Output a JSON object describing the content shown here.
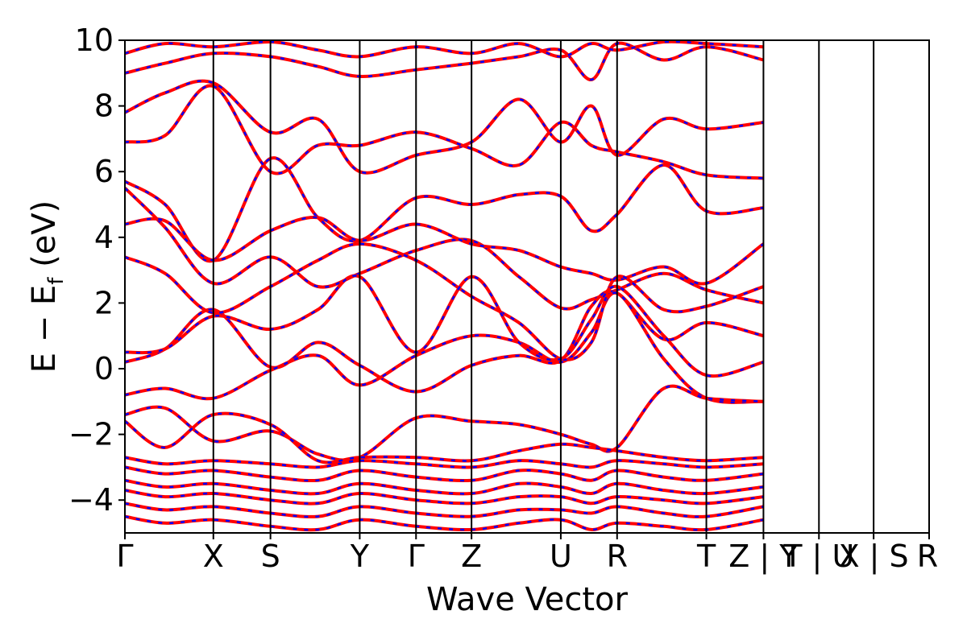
{
  "chart_data": {
    "type": "line",
    "title": "",
    "xlabel": "Wave Vector",
    "ylabel": "E − E_f (eV)",
    "ylabel_parts": {
      "main": "E − E",
      "sub": "f",
      "unit": " (eV)"
    },
    "ylim": [
      -5,
      10
    ],
    "yticks": [
      -4,
      -2,
      0,
      2,
      4,
      6,
      8,
      10
    ],
    "ytick_labels": [
      "−4",
      "−2",
      "0",
      "2",
      "4",
      "6",
      "8",
      "10"
    ],
    "grid": false,
    "legend": "none",
    "colors": {
      "band_solid": "#ff0000",
      "band_dashed": "#0000ff",
      "divider": "#000000"
    },
    "kpath": [
      {
        "label": "Γ",
        "x": 0.0
      },
      {
        "label": "X",
        "x": 0.11
      },
      {
        "label": "S",
        "x": 0.181
      },
      {
        "label": "Y",
        "x": 0.292
      },
      {
        "label": "Γ",
        "x": 0.362
      },
      {
        "label": "Z",
        "x": 0.431
      },
      {
        "label": "U",
        "x": 0.542
      },
      {
        "label": "R",
        "x": 0.612
      },
      {
        "label": "T",
        "x": 0.723
      },
      {
        "label": "Z | Y",
        "x": 0.794
      },
      {
        "label": "T | U",
        "x": 0.863
      },
      {
        "label": "X | S",
        "x": 0.931
      },
      {
        "label": "R",
        "x": 1.0
      }
    ],
    "series": [
      {
        "values": [
          [
            0,
            5.7
          ],
          [
            0.05,
            5.0
          ],
          [
            0.11,
            3.3
          ],
          [
            0.181,
            6.4
          ],
          [
            0.24,
            4.6
          ],
          [
            0.292,
            3.9
          ],
          [
            0.362,
            5.2
          ],
          [
            0.431,
            5.0
          ],
          [
            0.49,
            5.3
          ],
          [
            0.542,
            5.25
          ],
          [
            0.58,
            4.2
          ],
          [
            0.612,
            4.7
          ],
          [
            0.67,
            6.2
          ],
          [
            0.723,
            4.8
          ],
          [
            0.794,
            4.9
          ]
        ]
      },
      {
        "values": [
          [
            0,
            5.5
          ],
          [
            0.05,
            4.3
          ],
          [
            0.11,
            2.6
          ],
          [
            0.181,
            3.4
          ],
          [
            0.24,
            2.5
          ],
          [
            0.292,
            2.9
          ],
          [
            0.362,
            3.6
          ],
          [
            0.431,
            3.9
          ],
          [
            0.49,
            2.8
          ],
          [
            0.542,
            1.85
          ],
          [
            0.58,
            2.1
          ],
          [
            0.612,
            2.4
          ],
          [
            0.67,
            2.9
          ],
          [
            0.723,
            2.4
          ],
          [
            0.794,
            2.0
          ]
        ]
      },
      {
        "values": [
          [
            0,
            0.2
          ],
          [
            0.05,
            0.6
          ],
          [
            0.11,
            1.8
          ],
          [
            0.181,
            0.05
          ],
          [
            0.24,
            0.8
          ],
          [
            0.292,
            0.1
          ],
          [
            0.362,
            -0.7
          ],
          [
            0.431,
            0.1
          ],
          [
            0.49,
            0.4
          ],
          [
            0.542,
            0.25
          ],
          [
            0.58,
            1.9
          ],
          [
            0.612,
            2.3
          ],
          [
            0.67,
            0.9
          ],
          [
            0.723,
            1.4
          ],
          [
            0.794,
            1.0
          ]
        ]
      },
      {
        "values": [
          [
            0,
            -0.8
          ],
          [
            0.05,
            -0.6
          ],
          [
            0.11,
            -0.9
          ],
          [
            0.181,
            -0.05
          ],
          [
            0.24,
            0.4
          ],
          [
            0.292,
            -0.5
          ],
          [
            0.362,
            0.4
          ],
          [
            0.431,
            1.0
          ],
          [
            0.49,
            0.8
          ],
          [
            0.542,
            0.2
          ],
          [
            0.58,
            1.1
          ],
          [
            0.612,
            2.3
          ],
          [
            0.67,
            0.3
          ],
          [
            0.723,
            -0.9
          ],
          [
            0.794,
            -1.0
          ]
        ]
      },
      {
        "values": [
          [
            0,
            -1.4
          ],
          [
            0.05,
            -1.2
          ],
          [
            0.11,
            -2.2
          ],
          [
            0.181,
            -1.9
          ],
          [
            0.24,
            -2.6
          ],
          [
            0.292,
            -2.7
          ],
          [
            0.362,
            -1.5
          ],
          [
            0.431,
            -1.6
          ],
          [
            0.49,
            -1.7
          ],
          [
            0.542,
            -2.0
          ],
          [
            0.58,
            -2.3
          ],
          [
            0.612,
            -2.4
          ],
          [
            0.67,
            -0.6
          ],
          [
            0.723,
            -0.9
          ],
          [
            0.794,
            -1.0
          ]
        ]
      },
      {
        "values": [
          [
            0,
            -1.6
          ],
          [
            0.05,
            -2.4
          ],
          [
            0.11,
            -1.4
          ],
          [
            0.181,
            -1.7
          ],
          [
            0.24,
            -2.8
          ],
          [
            0.292,
            -2.7
          ],
          [
            0.362,
            -2.7
          ],
          [
            0.431,
            -2.8
          ],
          [
            0.49,
            -2.5
          ],
          [
            0.542,
            -2.3
          ],
          [
            0.58,
            -2.4
          ],
          [
            0.612,
            -2.5
          ],
          [
            0.67,
            -2.7
          ],
          [
            0.723,
            -2.8
          ],
          [
            0.794,
            -2.7
          ]
        ]
      },
      {
        "values": [
          [
            0,
            -2.7
          ],
          [
            0.05,
            -2.9
          ],
          [
            0.11,
            -2.8
          ],
          [
            0.181,
            -2.9
          ],
          [
            0.24,
            -3.0
          ],
          [
            0.292,
            -2.8
          ],
          [
            0.362,
            -2.9
          ],
          [
            0.431,
            -3.0
          ],
          [
            0.49,
            -2.8
          ],
          [
            0.542,
            -2.9
          ],
          [
            0.58,
            -3.0
          ],
          [
            0.612,
            -2.8
          ],
          [
            0.67,
            -2.9
          ],
          [
            0.723,
            -3.0
          ],
          [
            0.794,
            -2.9
          ]
        ]
      },
      {
        "values": [
          [
            0,
            -3.0
          ],
          [
            0.05,
            -3.2
          ],
          [
            0.11,
            -3.1
          ],
          [
            0.181,
            -3.3
          ],
          [
            0.24,
            -3.4
          ],
          [
            0.292,
            -3.1
          ],
          [
            0.362,
            -3.3
          ],
          [
            0.431,
            -3.4
          ],
          [
            0.49,
            -3.1
          ],
          [
            0.542,
            -3.2
          ],
          [
            0.58,
            -3.4
          ],
          [
            0.612,
            -3.1
          ],
          [
            0.67,
            -3.3
          ],
          [
            0.723,
            -3.4
          ],
          [
            0.794,
            -3.2
          ]
        ]
      },
      {
        "values": [
          [
            0,
            -3.4
          ],
          [
            0.05,
            -3.6
          ],
          [
            0.11,
            -3.5
          ],
          [
            0.181,
            -3.7
          ],
          [
            0.24,
            -3.8
          ],
          [
            0.292,
            -3.5
          ],
          [
            0.362,
            -3.7
          ],
          [
            0.431,
            -3.8
          ],
          [
            0.49,
            -3.5
          ],
          [
            0.542,
            -3.6
          ],
          [
            0.58,
            -3.8
          ],
          [
            0.612,
            -3.5
          ],
          [
            0.67,
            -3.7
          ],
          [
            0.723,
            -3.8
          ],
          [
            0.794,
            -3.6
          ]
        ]
      },
      {
        "values": [
          [
            0,
            -3.7
          ],
          [
            0.05,
            -3.9
          ],
          [
            0.11,
            -3.8
          ],
          [
            0.181,
            -4.0
          ],
          [
            0.24,
            -4.1
          ],
          [
            0.292,
            -3.8
          ],
          [
            0.362,
            -4.0
          ],
          [
            0.431,
            -4.1
          ],
          [
            0.49,
            -3.9
          ],
          [
            0.542,
            -3.9
          ],
          [
            0.58,
            -4.1
          ],
          [
            0.612,
            -3.9
          ],
          [
            0.67,
            -4.0
          ],
          [
            0.723,
            -4.1
          ],
          [
            0.794,
            -3.9
          ]
        ]
      },
      {
        "values": [
          [
            0,
            -4.1
          ],
          [
            0.05,
            -4.3
          ],
          [
            0.11,
            -4.2
          ],
          [
            0.181,
            -4.4
          ],
          [
            0.24,
            -4.5
          ],
          [
            0.292,
            -4.2
          ],
          [
            0.362,
            -4.4
          ],
          [
            0.431,
            -4.5
          ],
          [
            0.49,
            -4.3
          ],
          [
            0.542,
            -4.3
          ],
          [
            0.58,
            -4.4
          ],
          [
            0.612,
            -4.2
          ],
          [
            0.67,
            -4.4
          ],
          [
            0.723,
            -4.5
          ],
          [
            0.794,
            -4.2
          ]
        ]
      },
      {
        "values": [
          [
            0,
            -4.5
          ],
          [
            0.05,
            -4.7
          ],
          [
            0.11,
            -4.6
          ],
          [
            0.181,
            -4.8
          ],
          [
            0.24,
            -4.9
          ],
          [
            0.292,
            -4.6
          ],
          [
            0.362,
            -4.8
          ],
          [
            0.431,
            -4.9
          ],
          [
            0.49,
            -4.7
          ],
          [
            0.542,
            -4.6
          ],
          [
            0.58,
            -4.9
          ],
          [
            0.612,
            -4.7
          ],
          [
            0.67,
            -4.8
          ],
          [
            0.723,
            -4.9
          ],
          [
            0.794,
            -4.6
          ]
        ]
      },
      {
        "values": [
          [
            0,
            7.8
          ],
          [
            0.05,
            8.4
          ],
          [
            0.11,
            8.7
          ],
          [
            0.181,
            7.2
          ],
          [
            0.24,
            7.6
          ],
          [
            0.292,
            6.0
          ],
          [
            0.362,
            6.5
          ],
          [
            0.431,
            6.9
          ],
          [
            0.49,
            8.2
          ],
          [
            0.542,
            6.9
          ],
          [
            0.58,
            8.0
          ],
          [
            0.612,
            6.5
          ],
          [
            0.67,
            7.6
          ],
          [
            0.723,
            7.3
          ],
          [
            0.794,
            7.5
          ]
        ]
      },
      {
        "values": [
          [
            0,
            6.9
          ],
          [
            0.05,
            7.1
          ],
          [
            0.11,
            8.6
          ],
          [
            0.181,
            6.0
          ],
          [
            0.24,
            6.8
          ],
          [
            0.292,
            6.8
          ],
          [
            0.362,
            7.2
          ],
          [
            0.431,
            6.7
          ],
          [
            0.49,
            6.2
          ],
          [
            0.542,
            7.5
          ],
          [
            0.58,
            6.8
          ],
          [
            0.612,
            6.6
          ],
          [
            0.67,
            6.3
          ],
          [
            0.723,
            5.9
          ],
          [
            0.794,
            5.8
          ]
        ]
      },
      {
        "values": [
          [
            0,
            9.0
          ],
          [
            0.05,
            9.3
          ],
          [
            0.11,
            9.6
          ],
          [
            0.181,
            9.5
          ],
          [
            0.24,
            9.2
          ],
          [
            0.292,
            8.9
          ],
          [
            0.362,
            9.1
          ],
          [
            0.431,
            9.3
          ],
          [
            0.49,
            9.5
          ],
          [
            0.542,
            9.7
          ],
          [
            0.58,
            8.8
          ],
          [
            0.612,
            9.9
          ],
          [
            0.67,
            9.4
          ],
          [
            0.723,
            9.8
          ],
          [
            0.794,
            9.4
          ]
        ]
      },
      {
        "values": [
          [
            0,
            9.6
          ],
          [
            0.05,
            9.9
          ],
          [
            0.11,
            9.8
          ],
          [
            0.181,
            9.95
          ],
          [
            0.24,
            9.7
          ],
          [
            0.292,
            9.5
          ],
          [
            0.362,
            9.8
          ],
          [
            0.431,
            9.6
          ],
          [
            0.49,
            9.9
          ],
          [
            0.542,
            9.5
          ],
          [
            0.58,
            9.9
          ],
          [
            0.612,
            9.7
          ],
          [
            0.67,
            9.95
          ],
          [
            0.723,
            9.9
          ],
          [
            0.794,
            9.8
          ]
        ]
      },
      {
        "values": [
          [
            0,
            4.4
          ],
          [
            0.05,
            4.5
          ],
          [
            0.11,
            3.3
          ],
          [
            0.181,
            4.2
          ],
          [
            0.24,
            4.6
          ],
          [
            0.292,
            3.9
          ],
          [
            0.362,
            4.4
          ],
          [
            0.431,
            3.8
          ],
          [
            0.49,
            3.6
          ],
          [
            0.542,
            3.1
          ],
          [
            0.58,
            2.9
          ],
          [
            0.612,
            2.7
          ],
          [
            0.67,
            3.1
          ],
          [
            0.723,
            2.6
          ],
          [
            0.794,
            3.8
          ]
        ]
      },
      {
        "values": [
          [
            0,
            3.4
          ],
          [
            0.05,
            2.9
          ],
          [
            0.11,
            1.7
          ],
          [
            0.181,
            2.5
          ],
          [
            0.24,
            3.3
          ],
          [
            0.292,
            3.8
          ],
          [
            0.362,
            3.3
          ],
          [
            0.431,
            2.2
          ],
          [
            0.49,
            1.4
          ],
          [
            0.542,
            0.3
          ],
          [
            0.58,
            0.8
          ],
          [
            0.612,
            2.8
          ],
          [
            0.67,
            1.8
          ],
          [
            0.723,
            1.9
          ],
          [
            0.794,
            2.5
          ]
        ]
      },
      {
        "values": [
          [
            0,
            0.5
          ],
          [
            0.05,
            0.6
          ],
          [
            0.11,
            1.6
          ],
          [
            0.181,
            1.2
          ],
          [
            0.24,
            1.8
          ],
          [
            0.292,
            2.8
          ],
          [
            0.362,
            0.5
          ],
          [
            0.431,
            2.8
          ],
          [
            0.49,
            0.8
          ],
          [
            0.542,
            0.3
          ],
          [
            0.58,
            1.5
          ],
          [
            0.612,
            2.5
          ],
          [
            0.67,
            1.0
          ],
          [
            0.723,
            -0.2
          ],
          [
            0.794,
            0.2
          ]
        ]
      }
    ]
  }
}
